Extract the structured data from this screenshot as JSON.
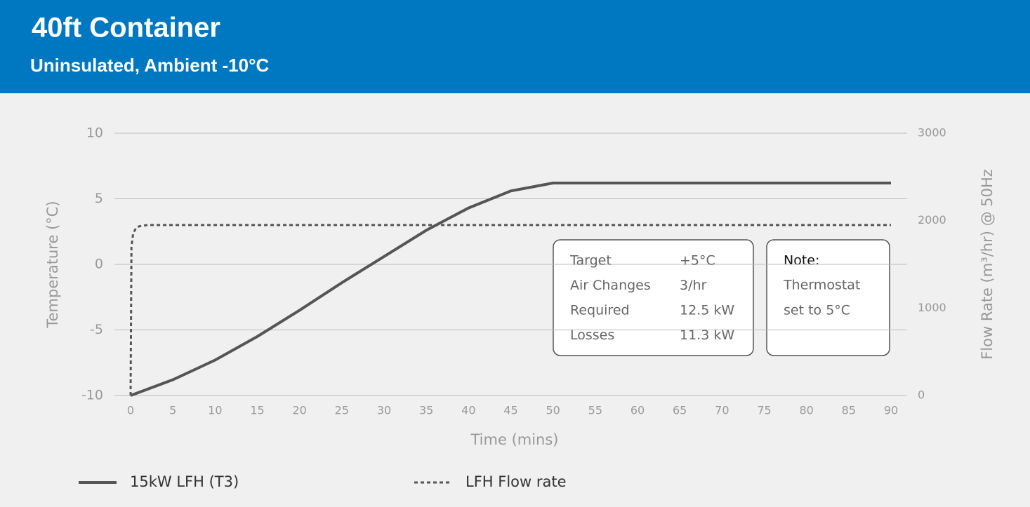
{
  "chart_data": {
    "type": "line",
    "title": "40ft Container",
    "subtitle": "Uninsulated, Ambient -10°C",
    "x_label": "Time (mins)",
    "y_label": "Temperature (°C)",
    "y2_label": "Flow Rate (m³/hr) @ 50Hz",
    "xlim": [
      0,
      90
    ],
    "xticks": [
      0,
      5,
      10,
      15,
      20,
      25,
      30,
      35,
      40,
      45,
      50,
      55,
      60,
      65,
      70,
      75,
      80,
      85,
      90
    ],
    "ylim": [
      -10,
      10
    ],
    "yticks": [
      -10,
      -5,
      0,
      5,
      10
    ],
    "y2lim": [
      0,
      3000
    ],
    "y2ticks": [
      0,
      1000,
      2000,
      3000
    ],
    "grid": true,
    "series": [
      {
        "name": "15kW LFH (T3)",
        "color": "#555555",
        "style": "solid",
        "x": [
          0,
          5,
          10,
          15,
          20,
          25,
          30,
          35,
          40,
          45,
          50,
          55,
          60,
          65,
          70,
          75,
          80,
          85,
          90
        ],
        "values": [
          -10,
          -8.8,
          -7.3,
          -5.5,
          -3.5,
          -1.4,
          0.6,
          2.6,
          4.3,
          5.6,
          6.2,
          6.2,
          6.2,
          6.2,
          6.2,
          6.2,
          6.2,
          6.2,
          6.2
        ]
      },
      {
        "name": "LFH Flow rate",
        "color": "#555555",
        "style": "dotted",
        "axis": "y2",
        "x": [
          0,
          0.1,
          0.3,
          0.6,
          1,
          2,
          5,
          10,
          20,
          30,
          40,
          50,
          60,
          70,
          80,
          90
        ],
        "values": [
          0,
          1700,
          1850,
          1910,
          1935,
          1950,
          1950,
          1950,
          1950,
          1950,
          1950,
          1950,
          1950,
          1950,
          1950,
          1950
        ]
      }
    ],
    "info_table": [
      [
        "Target",
        "+5°C"
      ],
      [
        "Air Changes",
        "3/hr"
      ],
      [
        "Required",
        "12.5 kW"
      ],
      [
        "Losses",
        "11.3 kW"
      ]
    ],
    "note": {
      "title": "Note:",
      "lines": [
        "Thermostat",
        "set to 5°C"
      ]
    }
  }
}
